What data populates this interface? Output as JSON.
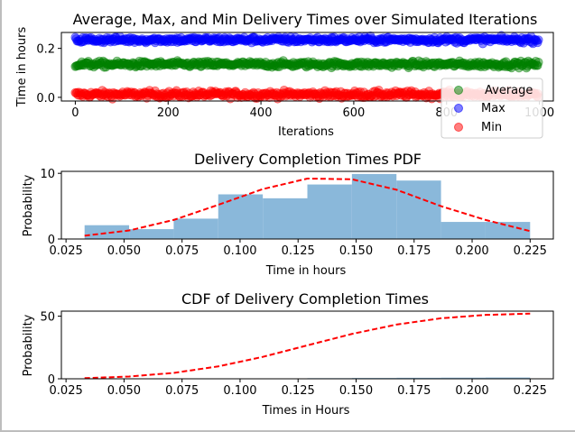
{
  "colors": {
    "average": "#008000",
    "max": "#0000ff",
    "min": "#ff0000",
    "hist": "#8ab8da",
    "fit": "#ff0000"
  },
  "chart_data": [
    {
      "type": "scatter",
      "title": "Average, Max, and Min Delivery Times over Simulated Iterations",
      "xlabel": "Iterations",
      "ylabel": "Time in hours",
      "xlim": [
        -30,
        1030
      ],
      "ylim": [
        -0.015,
        0.265
      ],
      "xticks": [
        0,
        200,
        400,
        600,
        800,
        1000
      ],
      "yticks": [
        0.0,
        0.2
      ],
      "ytick_labels": [
        "0.0",
        "0.2"
      ],
      "legend_position": "lower-right",
      "series": [
        {
          "name": "Average",
          "color": "#008000",
          "center": 0.135,
          "spread": 0.006,
          "count": 1000
        },
        {
          "name": "Max",
          "color": "#0000ff",
          "center": 0.235,
          "spread": 0.006,
          "count": 1000
        },
        {
          "name": "Min",
          "color": "#ff0000",
          "center": 0.012,
          "spread": 0.007,
          "count": 1000
        }
      ]
    },
    {
      "type": "bar",
      "title": "Delivery Completion Times PDF",
      "xlabel": "Time in hours",
      "ylabel": "Probability",
      "xlim": [
        0.023,
        0.235
      ],
      "ylim": [
        0,
        10.3
      ],
      "xticks": [
        0.025,
        0.05,
        0.075,
        0.1,
        0.125,
        0.15,
        0.175,
        0.2,
        0.225
      ],
      "xtick_labels": [
        "0.025",
        "0.050",
        "0.075",
        "0.100",
        "0.125",
        "0.150",
        "0.175",
        "0.200",
        "0.225"
      ],
      "yticks": [
        0,
        10
      ],
      "ytick_labels": [
        "0",
        "10"
      ],
      "bin_edges": [
        0.033,
        0.0522,
        0.0714,
        0.0906,
        0.1098,
        0.129,
        0.1482,
        0.1674,
        0.1866,
        0.2058,
        0.225
      ],
      "values": [
        2.1,
        1.5,
        3.1,
        6.8,
        6.2,
        8.3,
        9.9,
        8.9,
        2.6,
        2.6
      ],
      "fit_x": [
        0.033,
        0.0522,
        0.0714,
        0.0906,
        0.1098,
        0.129,
        0.1482,
        0.1674,
        0.1866,
        0.2058,
        0.225
      ],
      "fit_y": [
        0.5,
        1.3,
        2.9,
        5.2,
        7.6,
        9.2,
        9.1,
        7.5,
        5.0,
        2.9,
        1.2
      ]
    },
    {
      "type": "bar",
      "title": "CDF of Delivery Completion Times",
      "xlabel": "Times in Hours",
      "ylabel": "Probability",
      "xlim": [
        0.023,
        0.235
      ],
      "ylim": [
        0,
        54
      ],
      "xticks": [
        0.025,
        0.05,
        0.075,
        0.1,
        0.125,
        0.15,
        0.175,
        0.2,
        0.225
      ],
      "xtick_labels": [
        "0.025",
        "0.050",
        "0.075",
        "0.100",
        "0.125",
        "0.150",
        "0.175",
        "0.200",
        "0.225"
      ],
      "yticks": [
        0,
        50
      ],
      "ytick_labels": [
        "0",
        "50"
      ],
      "bin_edges": [
        0.033,
        0.0522,
        0.0714,
        0.0906,
        0.1098,
        0.129,
        0.1482,
        0.1674,
        0.1866,
        0.2058,
        0.225
      ],
      "values": [
        0.04,
        0.07,
        0.1,
        0.25,
        0.35,
        0.5,
        0.65,
        0.8,
        0.9,
        1.0
      ],
      "fit_x": [
        0.033,
        0.0522,
        0.0714,
        0.0906,
        0.1098,
        0.129,
        0.1482,
        0.1674,
        0.1866,
        0.2058,
        0.225
      ],
      "fit_y": [
        0.5,
        1.8,
        4.7,
        9.9,
        17.5,
        26.7,
        35.8,
        43.3,
        48.3,
        51.0,
        52.0
      ]
    }
  ]
}
